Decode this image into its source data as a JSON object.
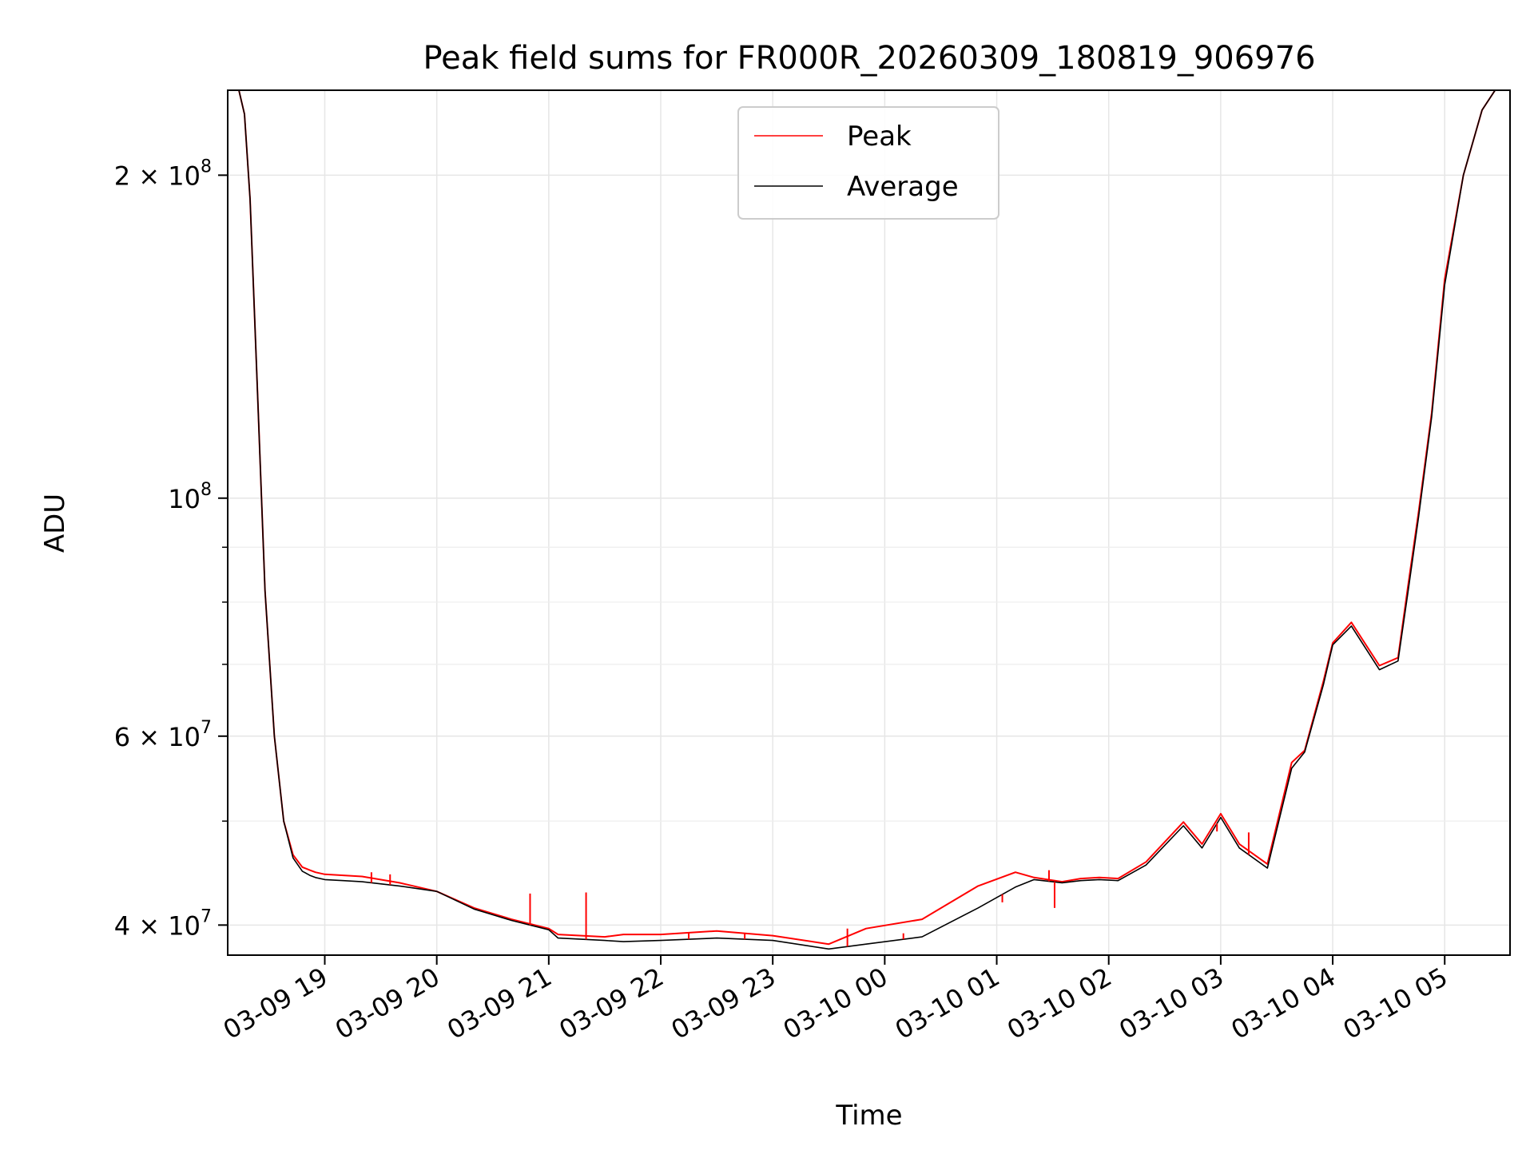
{
  "chart_data": {
    "type": "line",
    "title": "Peak field sums for FR000R_20260309_180819_906976",
    "xlabel": "Time",
    "ylabel": "ADU",
    "yscale": "log",
    "xlim": [
      "2026-03-09 18:08",
      "2026-03-10 05:35"
    ],
    "ylim": [
      37500000,
      240000000
    ],
    "grid": true,
    "legend_position": "top-center",
    "x_ticks": [
      "2026-03-09 19:00",
      "2026-03-09 20:00",
      "2026-03-09 21:00",
      "2026-03-09 22:00",
      "2026-03-09 23:00",
      "2026-03-10 00:00",
      "2026-03-10 01:00",
      "2026-03-10 02:00",
      "2026-03-10 03:00",
      "2026-03-10 04:00",
      "2026-03-10 05:00"
    ],
    "x_tick_labels": [
      "03-09 19",
      "03-09 20",
      "03-09 21",
      "03-09 22",
      "03-09 23",
      "03-10 00",
      "03-10 01",
      "03-10 02",
      "03-10 03",
      "03-10 04",
      "03-10 05"
    ],
    "y_ticks_major": [
      {
        "value": 40000000,
        "mantissa": "4 × 10",
        "exponent": "7"
      },
      {
        "value": 60000000,
        "mantissa": "6 × 10",
        "exponent": "7"
      },
      {
        "value": 100000000,
        "mantissa": "10",
        "exponent": "8"
      },
      {
        "value": 200000000,
        "mantissa": "2 × 10",
        "exponent": "8"
      }
    ],
    "y_ticks_minor": [
      50000000,
      70000000,
      80000000,
      90000000
    ],
    "series": [
      {
        "name": "Peak",
        "color": "#ff0000",
        "x": [
          "2026-03-09 18:12",
          "2026-03-09 18:14",
          "2026-03-09 18:17",
          "2026-03-09 18:20",
          "2026-03-09 18:24",
          "2026-03-09 18:28",
          "2026-03-09 18:33",
          "2026-03-09 18:38",
          "2026-03-09 18:43",
          "2026-03-09 18:48",
          "2026-03-09 18:52",
          "2026-03-09 18:55",
          "2026-03-09 19:00",
          "2026-03-09 19:10",
          "2026-03-09 19:20",
          "2026-03-09 19:40",
          "2026-03-09 20:00",
          "2026-03-09 20:20",
          "2026-03-09 20:40",
          "2026-03-09 21:00",
          "2026-03-09 21:05",
          "2026-03-09 21:30",
          "2026-03-09 21:40",
          "2026-03-09 22:00",
          "2026-03-09 22:30",
          "2026-03-09 23:00",
          "2026-03-09 23:30",
          "2026-03-09 23:50",
          "2026-03-10 00:20",
          "2026-03-10 00:50",
          "2026-03-10 01:10",
          "2026-03-10 01:20",
          "2026-03-10 01:35",
          "2026-03-10 01:45",
          "2026-03-10 01:55",
          "2026-03-10 02:05",
          "2026-03-10 02:20",
          "2026-03-10 02:40",
          "2026-03-10 02:50",
          "2026-03-10 03:00",
          "2026-03-10 03:10",
          "2026-03-10 03:25",
          "2026-03-10 03:38",
          "2026-03-10 03:45",
          "2026-03-10 03:55",
          "2026-03-10 04:00",
          "2026-03-10 04:10",
          "2026-03-10 04:25",
          "2026-03-10 04:35",
          "2026-03-10 04:40",
          "2026-03-10 04:46",
          "2026-03-10 04:53",
          "2026-03-10 05:00",
          "2026-03-10 05:10",
          "2026-03-10 05:20",
          "2026-03-10 05:27"
        ],
        "y": [
          240000000,
          240000000,
          228000000,
          190000000,
          125000000,
          82000000,
          60000000,
          50000000,
          46500000,
          45300000,
          45000000,
          44800000,
          44600000,
          44500000,
          44400000,
          43800000,
          43000000,
          41500000,
          40500000,
          39700000,
          39200000,
          39000000,
          39200000,
          39200000,
          39500000,
          39100000,
          38400000,
          39700000,
          40500000,
          43500000,
          44800000,
          44300000,
          43900000,
          44200000,
          44300000,
          44200000,
          45800000,
          49900000,
          47600000,
          50800000,
          47600000,
          45600000,
          56700000,
          58200000,
          67500000,
          73300000,
          76600000,
          69800000,
          71000000,
          82000000,
          97000000,
          120000000,
          160000000,
          200000000,
          230000000,
          240000000
        ]
      },
      {
        "name": "Average",
        "color": "#000000",
        "x": [
          "2026-03-09 18:12",
          "2026-03-09 18:14",
          "2026-03-09 18:17",
          "2026-03-09 18:20",
          "2026-03-09 18:24",
          "2026-03-09 18:28",
          "2026-03-09 18:33",
          "2026-03-09 18:38",
          "2026-03-09 18:43",
          "2026-03-09 18:48",
          "2026-03-09 18:52",
          "2026-03-09 18:55",
          "2026-03-09 19:00",
          "2026-03-09 19:10",
          "2026-03-09 19:20",
          "2026-03-09 19:40",
          "2026-03-09 20:00",
          "2026-03-09 20:20",
          "2026-03-09 20:40",
          "2026-03-09 21:00",
          "2026-03-09 21:05",
          "2026-03-09 21:30",
          "2026-03-09 21:40",
          "2026-03-09 22:00",
          "2026-03-09 22:30",
          "2026-03-09 23:00",
          "2026-03-09 23:30",
          "2026-03-09 23:50",
          "2026-03-10 00:20",
          "2026-03-10 00:50",
          "2026-03-10 01:10",
          "2026-03-10 01:20",
          "2026-03-10 01:35",
          "2026-03-10 01:45",
          "2026-03-10 01:55",
          "2026-03-10 02:05",
          "2026-03-10 02:20",
          "2026-03-10 02:40",
          "2026-03-10 02:50",
          "2026-03-10 03:00",
          "2026-03-10 03:10",
          "2026-03-10 03:25",
          "2026-03-10 03:38",
          "2026-03-10 03:45",
          "2026-03-10 03:55",
          "2026-03-10 04:00",
          "2026-03-10 04:10",
          "2026-03-10 04:25",
          "2026-03-10 04:35",
          "2026-03-10 04:40",
          "2026-03-10 04:46",
          "2026-03-10 04:53",
          "2026-03-10 05:00",
          "2026-03-10 05:10",
          "2026-03-10 05:20",
          "2026-03-10 05:27"
        ],
        "y": [
          240000000,
          240000000,
          228000000,
          190000000,
          125000000,
          82000000,
          60000000,
          50000000,
          46200000,
          44900000,
          44500000,
          44300000,
          44100000,
          44000000,
          43900000,
          43500000,
          43000000,
          41400000,
          40400000,
          39600000,
          38900000,
          38700000,
          38600000,
          38700000,
          38900000,
          38700000,
          38000000,
          38400000,
          39000000,
          41500000,
          43400000,
          44100000,
          43800000,
          44000000,
          44100000,
          44000000,
          45500000,
          49500000,
          47200000,
          50400000,
          47200000,
          45200000,
          56000000,
          58000000,
          67000000,
          73000000,
          76000000,
          69200000,
          70500000,
          81000000,
          96000000,
          119000000,
          158000000,
          200000000,
          230000000,
          240000000
        ]
      }
    ],
    "peak_spikes": [
      {
        "x": "2026-03-09 19:25",
        "y": 44800000
      },
      {
        "x": "2026-03-09 19:35",
        "y": 44600000
      },
      {
        "x": "2026-03-09 20:50",
        "y": 42800000
      },
      {
        "x": "2026-03-09 21:20",
        "y": 42900000
      },
      {
        "x": "2026-03-09 22:15",
        "y": 39400000
      },
      {
        "x": "2026-03-09 22:45",
        "y": 39300000
      },
      {
        "x": "2026-03-09 23:40",
        "y": 39700000
      },
      {
        "x": "2026-03-10 00:10",
        "y": 39300000
      },
      {
        "x": "2026-03-10 01:03",
        "y": 42000000
      },
      {
        "x": "2026-03-10 01:28",
        "y": 45000000
      },
      {
        "x": "2026-03-10 01:31",
        "y": 41500000
      },
      {
        "x": "2026-03-10 02:58",
        "y": 48900000
      },
      {
        "x": "2026-03-10 03:15",
        "y": 48800000
      }
    ]
  },
  "legend": {
    "items": [
      {
        "label": "Peak",
        "color": "#ff0000"
      },
      {
        "label": "Average",
        "color": "#000000"
      }
    ]
  }
}
